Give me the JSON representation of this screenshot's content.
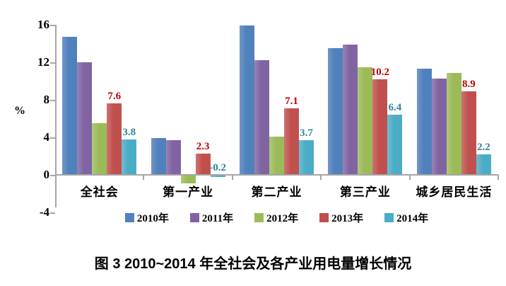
{
  "figure": {
    "caption": "图 3  2010~2014 年全社会及各产业用电量增长情况"
  },
  "chart_data": {
    "type": "bar",
    "title": "",
    "xlabel": "",
    "ylabel": "%",
    "ylim": [
      -4,
      16
    ],
    "yticks": [
      16,
      12,
      8,
      4,
      0,
      -4
    ],
    "grid": false,
    "legend_position": "bottom",
    "axis_color": "#a6a6a6",
    "categories": [
      "全社会",
      "第一产业",
      "第二产业",
      "第三产业",
      "城乡居民生活"
    ],
    "series": [
      {
        "name": "2010年",
        "color": "#4F81BD",
        "highlight": "#7295C8",
        "show_labels": false,
        "label_color": "#000000",
        "values": [
          14.7,
          3.9,
          15.9,
          13.5,
          11.3
        ]
      },
      {
        "name": "2011年",
        "color": "#8064A2",
        "highlight": "#9A83B5",
        "show_labels": false,
        "label_color": "#000000",
        "values": [
          12.0,
          3.7,
          12.2,
          13.9,
          10.3
        ]
      },
      {
        "name": "2012年",
        "color": "#9BBB59",
        "highlight": "#AFC97A",
        "show_labels": false,
        "label_color": "#000000",
        "values": [
          5.5,
          -0.9,
          4.1,
          11.5,
          10.9
        ]
      },
      {
        "name": "2013年",
        "color": "#C0504D",
        "highlight": "#CD7371",
        "show_labels": true,
        "label_color": "#C00000",
        "values": [
          7.6,
          2.3,
          7.1,
          10.2,
          8.9
        ]
      },
      {
        "name": "2014年",
        "color": "#4BACC6",
        "highlight": "#70BDD2",
        "show_labels": true,
        "label_color": "#31849B",
        "values": [
          3.8,
          -0.2,
          3.7,
          6.4,
          2.2
        ]
      }
    ]
  }
}
